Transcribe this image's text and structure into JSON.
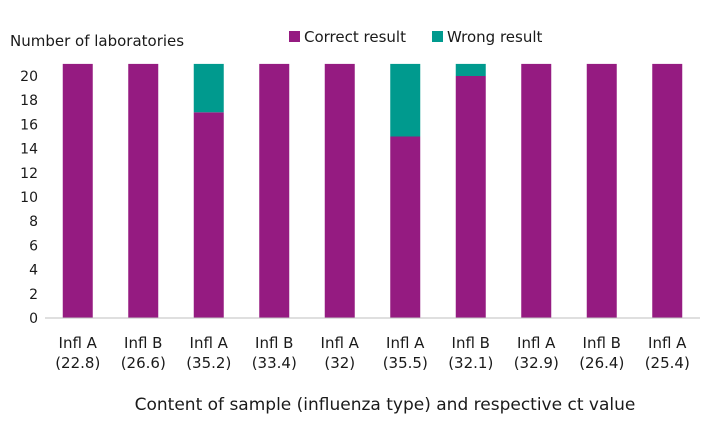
{
  "chart_data": {
    "type": "bar",
    "stacked": true,
    "ylabel": "Number of laboratories",
    "xlabel": "Content of sample (influenza type) and respective ct value",
    "ylim": [
      0,
      22
    ],
    "yticks": [
      0,
      2,
      4,
      6,
      8,
      10,
      12,
      14,
      16,
      18,
      20
    ],
    "grid": false,
    "legend_position": "top",
    "categories": [
      [
        "Infl A",
        "(22.8)"
      ],
      [
        "Infl B",
        "(26.6)"
      ],
      [
        "Infl A",
        "(35.2)"
      ],
      [
        "Infl B",
        "(33.4)"
      ],
      [
        "Infl A",
        "(32)"
      ],
      [
        "Infl A",
        "(35.5)"
      ],
      [
        "Infl B",
        "(32.1)"
      ],
      [
        "Infl A",
        "(32.9)"
      ],
      [
        "Infl B",
        "(26.4)"
      ],
      [
        "Infl A",
        "(25.4)"
      ]
    ],
    "series": [
      {
        "name": "Correct result",
        "color": "#951b81",
        "values": [
          21,
          21,
          17,
          21,
          21,
          15,
          20,
          21,
          21,
          21
        ]
      },
      {
        "name": "Wrong result",
        "color": "#009a8e",
        "values": [
          0,
          0,
          4,
          0,
          0,
          6,
          1,
          0,
          0,
          0
        ]
      }
    ]
  }
}
